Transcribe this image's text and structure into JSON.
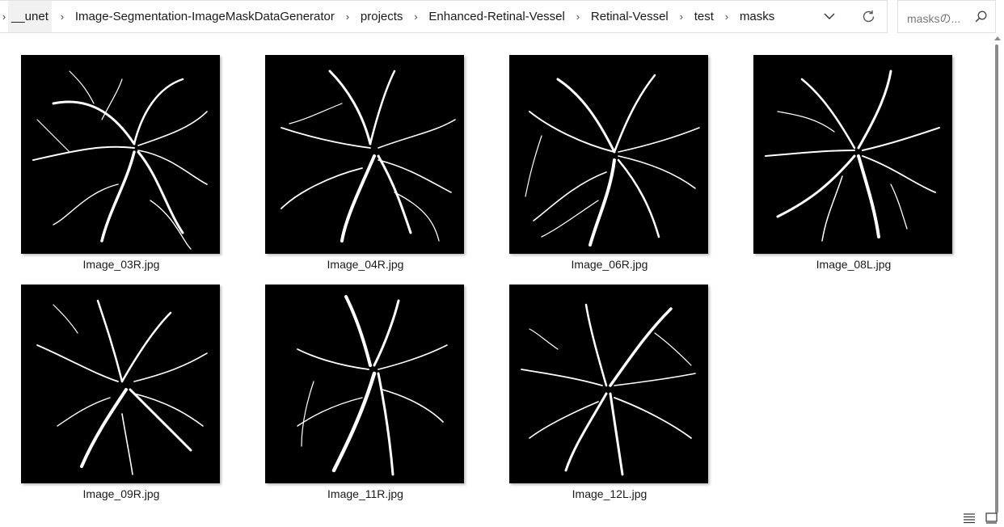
{
  "breadcrumb": {
    "items": [
      "__unet",
      "Image-Segmentation-ImageMaskDataGenerator",
      "projects",
      "Enhanced-Retinal-Vessel",
      "Retinal-Vessel",
      "test",
      "masks"
    ]
  },
  "address_actions": {
    "dropdown_icon": "chevron-down-icon",
    "refresh_icon": "refresh-icon"
  },
  "search": {
    "placeholder": "masksの..."
  },
  "files": [
    {
      "name": "Image_03R.jpg"
    },
    {
      "name": "Image_04R.jpg"
    },
    {
      "name": "Image_06R.jpg"
    },
    {
      "name": "Image_08L.jpg"
    },
    {
      "name": "Image_09R.jpg"
    },
    {
      "name": "Image_11R.jpg"
    },
    {
      "name": "Image_12L.jpg"
    }
  ],
  "status_bar": {
    "details_view_icon": "details-view-icon",
    "large_icons_view_icon": "large-icons-view-icon"
  }
}
